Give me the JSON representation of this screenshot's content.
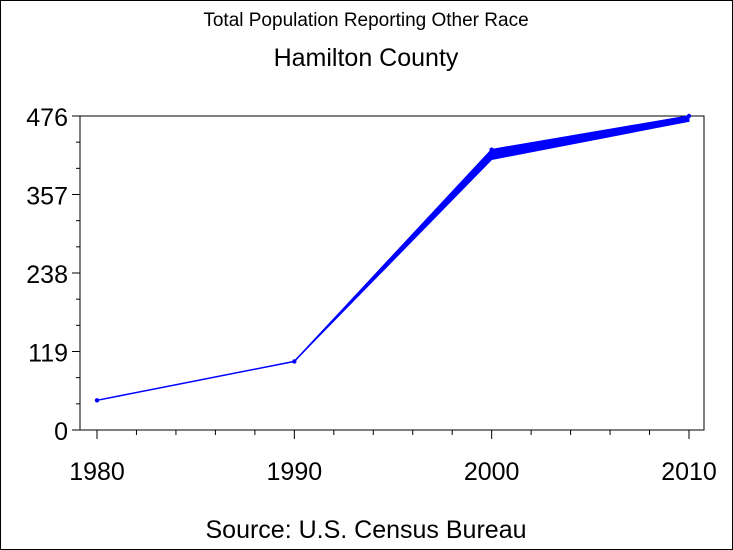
{
  "chart_data": {
    "type": "line",
    "title": "Total Population Reporting Other Race",
    "subtitle": "Hamilton County",
    "footnote": "Source: U.S. Census Bureau",
    "x": [
      1980,
      1990,
      2000,
      2010
    ],
    "x_tick_labels": [
      "1980",
      "1990",
      "2000",
      "2010"
    ],
    "y_tick_labels": [
      "0",
      "119",
      "238",
      "357",
      "476"
    ],
    "y_ticks": [
      0,
      119,
      238,
      357,
      476
    ],
    "xlim": [
      1980,
      2010
    ],
    "ylim": [
      0,
      476
    ],
    "grid": false,
    "series": [
      {
        "values": [
          45,
          104,
          425,
          476
        ]
      }
    ],
    "band_2000_low": 410,
    "band_2010_low": 468,
    "colors": {
      "line": "#0000ff",
      "axis": "#000000",
      "background": "#ffffff"
    }
  }
}
